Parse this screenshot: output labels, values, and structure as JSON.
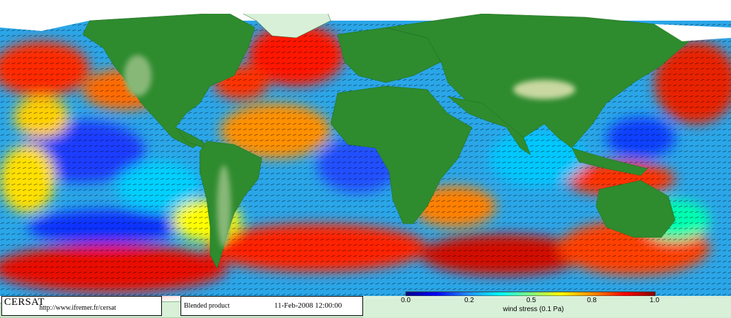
{
  "map": {
    "type": "global wind stress field",
    "projection": "equirectangular",
    "land_color": "#2e8b2e",
    "ice_color": "#ffffff",
    "vector_color": "#000000"
  },
  "footer": {
    "logo_text": "CERSAT",
    "url": "http://www.ifremer.fr/cersat",
    "product": "Blended product",
    "date": "11-Feb-2008 12:00:00"
  },
  "colorbar": {
    "title": "wind stress (0.1 Pa)",
    "min": 0.0,
    "max": 1.0,
    "ticks": [
      "0.0",
      "0.2",
      "0.5",
      "0.8",
      "1.0"
    ],
    "tick_values": [
      0.0,
      0.2,
      0.5,
      0.8,
      1.0
    ],
    "colors": [
      "#00008b",
      "#0000ff",
      "#1e90ff",
      "#00ffff",
      "#7fff7f",
      "#ffff00",
      "#ff8c00",
      "#ff0000",
      "#8b0000"
    ]
  }
}
